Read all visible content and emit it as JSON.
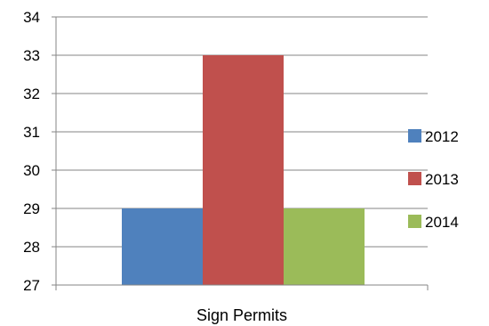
{
  "chart_data": {
    "type": "bar",
    "categories": [
      "Sign Permits"
    ],
    "series": [
      {
        "name": "2012",
        "values": [
          29
        ],
        "color": "#4F81BD"
      },
      {
        "name": "2013",
        "values": [
          33
        ],
        "color": "#C0504D"
      },
      {
        "name": "2014",
        "values": [
          29
        ],
        "color": "#9BBB59"
      }
    ],
    "title": "",
    "xlabel": "",
    "ylabel": "",
    "ylim": [
      27,
      34
    ],
    "yticks": [
      "27",
      "28",
      "29",
      "30",
      "31",
      "32",
      "33",
      "34"
    ],
    "grid": true,
    "legend_position": "right"
  }
}
